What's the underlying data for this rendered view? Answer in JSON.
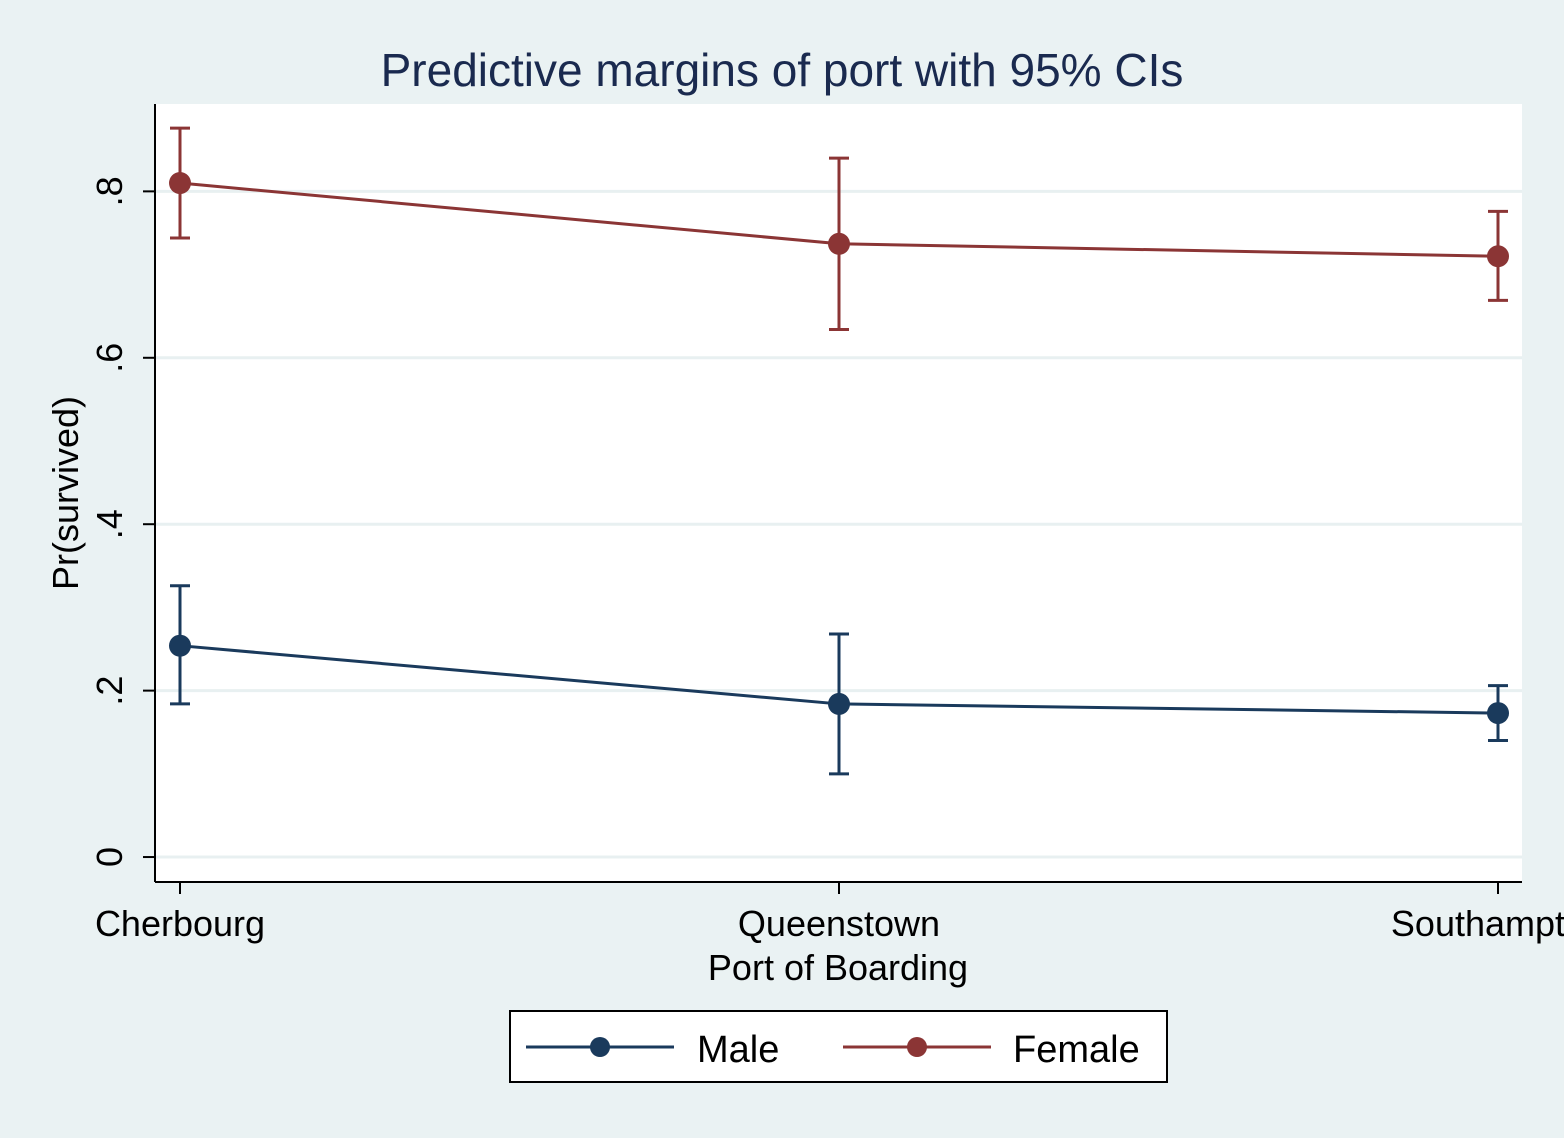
{
  "chart_data": {
    "type": "line",
    "title": "Predictive margins of port with 95% CIs",
    "xlabel": "Port of Boarding",
    "ylabel": "Pr(survived)",
    "categories": [
      "Cherbourg",
      "Queenstown",
      "Southampton"
    ],
    "yticks": [
      {
        "value": 0,
        "label": "0"
      },
      {
        "value": 0.2,
        "label": ".2"
      },
      {
        "value": 0.4,
        "label": ".4"
      },
      {
        "value": 0.6,
        "label": ".6"
      },
      {
        "value": 0.8,
        "label": ".8"
      }
    ],
    "ylim": [
      -0.03,
      0.905
    ],
    "grid": true,
    "legend_position": "bottom",
    "series": [
      {
        "name": "Male",
        "color": "#1a3a5c",
        "values": [
          0.254,
          0.184,
          0.173
        ],
        "ci_low": [
          0.184,
          0.1,
          0.14
        ],
        "ci_high": [
          0.326,
          0.268,
          0.206
        ]
      },
      {
        "name": "Female",
        "color": "#8b3535",
        "values": [
          0.81,
          0.737,
          0.722
        ],
        "ci_low": [
          0.744,
          0.634,
          0.669
        ],
        "ci_high": [
          0.876,
          0.84,
          0.776
        ]
      }
    ]
  }
}
